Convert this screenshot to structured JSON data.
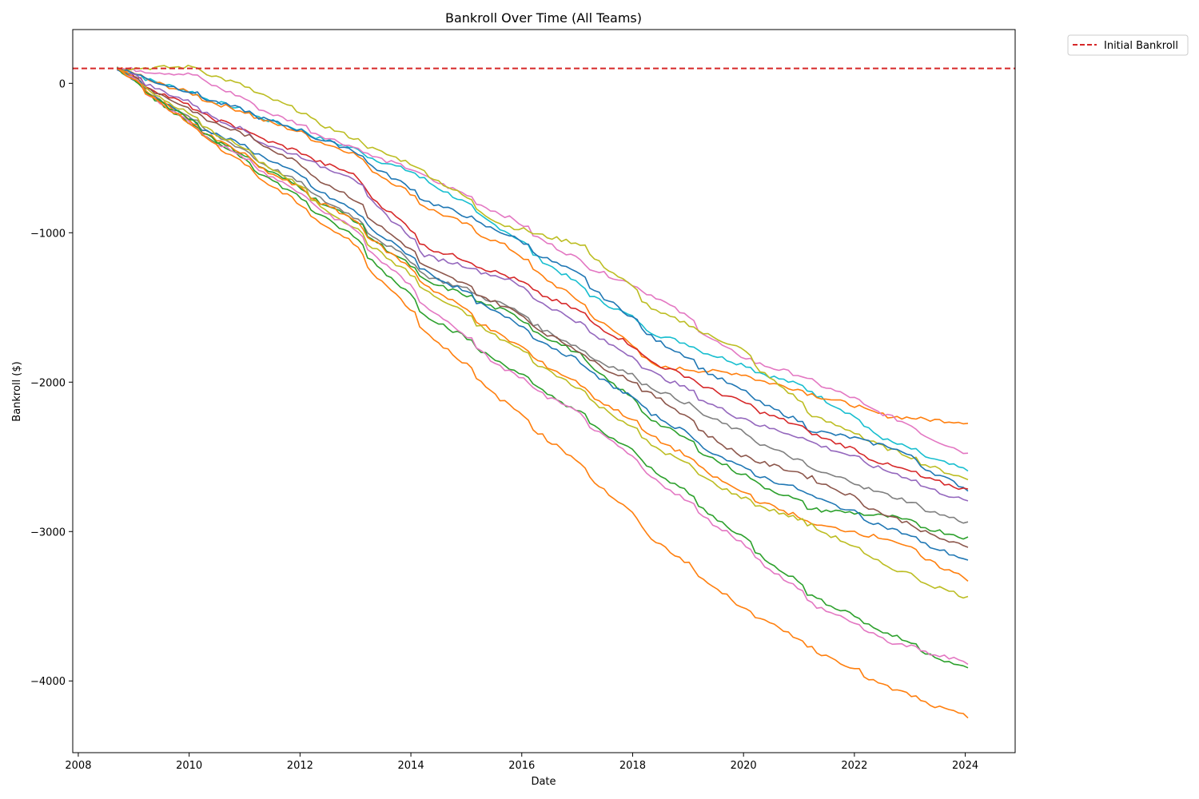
{
  "chart_data": {
    "type": "line",
    "title": "Bankroll Over Time (All Teams)",
    "xlabel": "Date",
    "ylabel": "Bankroll ($)",
    "xlim": [
      2007.9,
      2024.9
    ],
    "ylim": [
      -4480,
      360
    ],
    "x_ticks": [
      2008,
      2010,
      2012,
      2014,
      2016,
      2018,
      2020,
      2022,
      2024
    ],
    "x_tick_labels": [
      "2008",
      "2010",
      "2012",
      "2014",
      "2016",
      "2018",
      "2020",
      "2022",
      "2024"
    ],
    "y_ticks": [
      0,
      -1000,
      -2000,
      -3000,
      -4000
    ],
    "y_tick_labels": [
      "0",
      "−1000",
      "−2000",
      "−3000",
      "−4000"
    ],
    "grid": false,
    "legend_position": "outside-top-right",
    "reference_line": {
      "name": "Initial Bankroll",
      "value": 100,
      "style": "dashed",
      "color": "#d62728"
    },
    "palette": [
      "#1f77b4",
      "#ff7f0e",
      "#2ca02c",
      "#d62728",
      "#9467bd",
      "#8c564b",
      "#e377c2",
      "#7f7f7f",
      "#bcbd22",
      "#17becf"
    ],
    "series_note_none": "",
    "series": [
      {
        "color": "#17becf",
        "start": 2008.7,
        "end": 2024.05,
        "y": [
          100,
          -70,
          -250,
          -430,
          -640,
          -980,
          -1370,
          -1680,
          -1870,
          -2060,
          -2400,
          -2600
        ]
      },
      {
        "color": "#ff7f0e",
        "start": 2008.7,
        "end": 2024.05,
        "y": [
          100,
          -80,
          -260,
          -460,
          -820,
          -1080,
          -1480,
          -1900,
          -1940,
          -2080,
          -2230,
          -2270
        ]
      },
      {
        "color": "#e377c2",
        "start": 2008.7,
        "end": 2024.05,
        "y": [
          100,
          55,
          -200,
          -420,
          -620,
          -880,
          -1200,
          -1430,
          -1820,
          -1990,
          -2230,
          -2490
        ]
      },
      {
        "color": "#bcbd22",
        "start": 2008.7,
        "end": 2024.05,
        "y": [
          100,
          110,
          -100,
          -360,
          -590,
          -950,
          -1080,
          -1530,
          -1760,
          -2220,
          -2450,
          -2660
        ]
      },
      {
        "color": "#1f77b4",
        "start": 2008.7,
        "end": 2024.05,
        "y": [
          100,
          -70,
          -250,
          -440,
          -780,
          -1000,
          -1300,
          -1720,
          -2040,
          -2320,
          -2430,
          -2730
        ]
      },
      {
        "color": "#d62728",
        "start": 2008.7,
        "end": 2024.05,
        "y": [
          100,
          -180,
          -390,
          -600,
          -1090,
          -1280,
          -1540,
          -1880,
          -2120,
          -2340,
          -2560,
          -2730
        ]
      },
      {
        "color": "#9467bd",
        "start": 2008.7,
        "end": 2024.05,
        "y": [
          100,
          -150,
          -420,
          -620,
          -1150,
          -1300,
          -1620,
          -1950,
          -2230,
          -2400,
          -2600,
          -2810
        ]
      },
      {
        "color": "#7f7f7f",
        "start": 2008.7,
        "end": 2024.05,
        "y": [
          100,
          -260,
          -560,
          -880,
          -1280,
          -1480,
          -1790,
          -2050,
          -2320,
          -2580,
          -2760,
          -2950
        ]
      },
      {
        "color": "#2ca02c",
        "start": 2008.7,
        "end": 2024.05,
        "y": [
          100,
          -300,
          -590,
          -900,
          -1320,
          -1520,
          -1830,
          -2270,
          -2600,
          -2850,
          -2900,
          -3050
        ]
      },
      {
        "color": "#8c564b",
        "start": 2008.7,
        "end": 2024.05,
        "y": [
          100,
          -200,
          -430,
          -760,
          -1220,
          -1490,
          -1810,
          -2100,
          -2480,
          -2640,
          -2900,
          -3120
        ]
      },
      {
        "color": "#1f77b4",
        "start": 2008.7,
        "end": 2024.05,
        "y": [
          100,
          -270,
          -510,
          -840,
          -1250,
          -1560,
          -1880,
          -2230,
          -2560,
          -2760,
          -2980,
          -3200
        ]
      },
      {
        "color": "#ff7f0e",
        "start": 2008.7,
        "end": 2024.05,
        "y": [
          100,
          -280,
          -600,
          -900,
          -1340,
          -1700,
          -2030,
          -2380,
          -2720,
          -2950,
          -3050,
          -3330
        ]
      },
      {
        "color": "#bcbd22",
        "start": 2008.7,
        "end": 2024.05,
        "y": [
          100,
          -240,
          -560,
          -950,
          -1380,
          -1720,
          -2060,
          -2440,
          -2760,
          -2960,
          -3240,
          -3450
        ]
      },
      {
        "color": "#2ca02c",
        "start": 2008.7,
        "end": 2024.05,
        "y": [
          100,
          -280,
          -640,
          -1010,
          -1540,
          -1880,
          -2220,
          -2600,
          -3010,
          -3430,
          -3690,
          -3930
        ]
      },
      {
        "color": "#e377c2",
        "start": 2008.7,
        "end": 2024.05,
        "y": [
          100,
          -300,
          -620,
          -960,
          -1480,
          -1910,
          -2230,
          -2660,
          -3050,
          -3480,
          -3740,
          -3880
        ]
      },
      {
        "color": "#ff7f0e",
        "start": 2008.7,
        "end": 2024.05,
        "y": [
          100,
          -300,
          -680,
          -1060,
          -1650,
          -2130,
          -2560,
          -3070,
          -3480,
          -3780,
          -4050,
          -4250
        ]
      }
    ]
  }
}
